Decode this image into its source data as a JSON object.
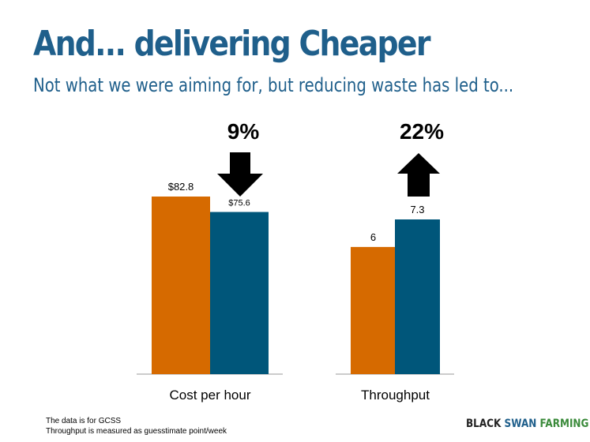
{
  "header": {
    "title_prefix": "And...  delivering ",
    "title_emphasis": "Cheaper",
    "subtitle": "Not what we were aiming for, but reducing waste has led to..."
  },
  "chart_data": {
    "type": "bar",
    "title": "",
    "xlabel": "",
    "ylabel": "",
    "colors": [
      "#d66a00",
      "#00567a"
    ],
    "groups": [
      {
        "category": "Cost per hour",
        "values": [
          82.8,
          75.6
        ],
        "labels": [
          "$82.8",
          "$75.6"
        ],
        "change": {
          "direction": "down",
          "label": "9%"
        }
      },
      {
        "category": "Throughput",
        "values": [
          6,
          7.3
        ],
        "labels": [
          "6",
          "7.3"
        ],
        "change": {
          "direction": "up",
          "label": "22%"
        }
      }
    ]
  },
  "footnotes": [
    "The data is for GCSS",
    "Throughput is measured as guesstimate point/week"
  ],
  "logo": {
    "part1": "BLACK",
    "part2": "SWAN",
    "part3": "FARMING"
  }
}
